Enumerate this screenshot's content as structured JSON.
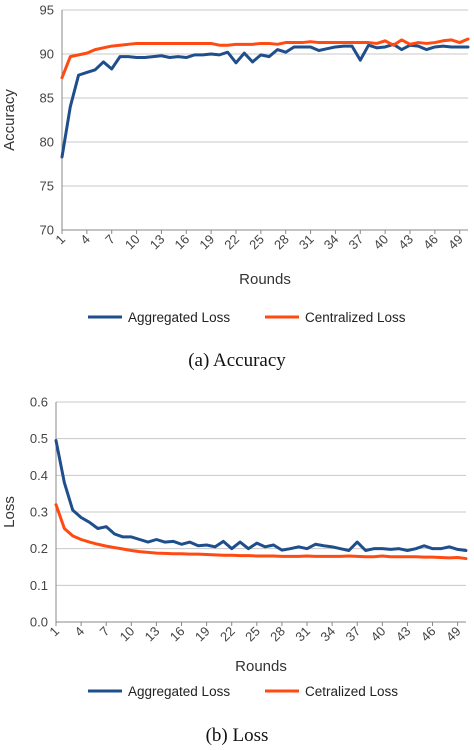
{
  "colors": {
    "aggregated": "#1f4e8c",
    "centralized": "#ff4a12",
    "grid": "#c8c8c8",
    "axis": "#888888"
  },
  "chart_data": [
    {
      "type": "line",
      "caption": "(a) Accuracy",
      "xlabel": "Rounds",
      "ylabel": "Accuracy",
      "ylim": [
        70,
        95
      ],
      "yticks": [
        70,
        75,
        80,
        85,
        90,
        95
      ],
      "xticks": [
        1,
        4,
        7,
        10,
        13,
        16,
        19,
        22,
        25,
        28,
        31,
        34,
        37,
        40,
        43,
        46,
        49
      ],
      "grid": true,
      "legend_position": "bottom",
      "x": [
        1,
        2,
        3,
        4,
        5,
        6,
        7,
        8,
        9,
        10,
        11,
        12,
        13,
        14,
        15,
        16,
        17,
        18,
        19,
        20,
        21,
        22,
        23,
        24,
        25,
        26,
        27,
        28,
        29,
        30,
        31,
        32,
        33,
        34,
        35,
        36,
        37,
        38,
        39,
        40,
        41,
        42,
        43,
        44,
        45,
        46,
        47,
        48,
        49,
        50
      ],
      "series": [
        {
          "name": "Aggregated Loss",
          "color_key": "aggregated",
          "values": [
            78.3,
            84.0,
            87.6,
            87.9,
            88.2,
            89.1,
            88.3,
            89.7,
            89.7,
            89.6,
            89.6,
            89.7,
            89.8,
            89.6,
            89.7,
            89.6,
            89.9,
            89.9,
            90.0,
            89.9,
            90.2,
            89.0,
            90.1,
            89.1,
            89.9,
            89.7,
            90.5,
            90.2,
            90.8,
            90.8,
            90.8,
            90.4,
            90.6,
            90.8,
            90.9,
            90.9,
            89.3,
            91.0,
            90.7,
            90.8,
            91.1,
            90.5,
            91.0,
            90.9,
            90.5,
            90.8,
            90.9,
            90.8,
            90.8,
            90.8
          ]
        },
        {
          "name": "Centralized Loss",
          "color_key": "centralized",
          "values": [
            87.3,
            89.7,
            89.9,
            90.1,
            90.5,
            90.7,
            90.9,
            91.0,
            91.1,
            91.2,
            91.2,
            91.2,
            91.2,
            91.2,
            91.2,
            91.2,
            91.2,
            91.2,
            91.2,
            91.0,
            91.0,
            91.1,
            91.1,
            91.1,
            91.2,
            91.2,
            91.1,
            91.3,
            91.3,
            91.3,
            91.4,
            91.3,
            91.3,
            91.3,
            91.3,
            91.3,
            91.3,
            91.3,
            91.2,
            91.5,
            91.0,
            91.6,
            91.1,
            91.3,
            91.2,
            91.3,
            91.5,
            91.6,
            91.3,
            91.7
          ]
        }
      ]
    },
    {
      "type": "line",
      "caption": "(b) Loss",
      "xlabel": "Rounds",
      "ylabel": "Loss",
      "ylim": [
        0,
        0.6
      ],
      "yticks": [
        0,
        0.1,
        0.2,
        0.3,
        0.4,
        0.5,
        0.6
      ],
      "xticks": [
        1,
        4,
        7,
        10,
        13,
        16,
        19,
        22,
        25,
        28,
        31,
        34,
        37,
        40,
        43,
        46,
        49
      ],
      "grid": true,
      "legend_position": "bottom",
      "x": [
        1,
        2,
        3,
        4,
        5,
        6,
        7,
        8,
        9,
        10,
        11,
        12,
        13,
        14,
        15,
        16,
        17,
        18,
        19,
        20,
        21,
        22,
        23,
        24,
        25,
        26,
        27,
        28,
        29,
        30,
        31,
        32,
        33,
        34,
        35,
        36,
        37,
        38,
        39,
        40,
        41,
        42,
        43,
        44,
        45,
        46,
        47,
        48,
        49,
        50
      ],
      "series": [
        {
          "name": "Aggregated Loss",
          "color_key": "aggregated",
          "values": [
            0.495,
            0.38,
            0.305,
            0.285,
            0.272,
            0.255,
            0.26,
            0.24,
            0.232,
            0.232,
            0.225,
            0.218,
            0.225,
            0.218,
            0.22,
            0.212,
            0.218,
            0.208,
            0.21,
            0.205,
            0.22,
            0.2,
            0.218,
            0.2,
            0.215,
            0.205,
            0.21,
            0.196,
            0.2,
            0.205,
            0.2,
            0.212,
            0.208,
            0.205,
            0.2,
            0.195,
            0.218,
            0.195,
            0.2,
            0.2,
            0.198,
            0.2,
            0.195,
            0.2,
            0.208,
            0.2,
            0.2,
            0.205,
            0.198,
            0.195
          ]
        },
        {
          "name": "Cetralized Loss",
          "color_key": "centralized",
          "values": [
            0.32,
            0.255,
            0.235,
            0.225,
            0.218,
            0.212,
            0.207,
            0.203,
            0.199,
            0.195,
            0.192,
            0.19,
            0.188,
            0.187,
            0.186,
            0.186,
            0.185,
            0.185,
            0.184,
            0.183,
            0.182,
            0.182,
            0.181,
            0.181,
            0.18,
            0.18,
            0.18,
            0.179,
            0.179,
            0.179,
            0.18,
            0.179,
            0.179,
            0.179,
            0.179,
            0.18,
            0.179,
            0.178,
            0.178,
            0.18,
            0.178,
            0.178,
            0.178,
            0.178,
            0.177,
            0.177,
            0.176,
            0.175,
            0.176,
            0.173
          ]
        }
      ]
    }
  ]
}
